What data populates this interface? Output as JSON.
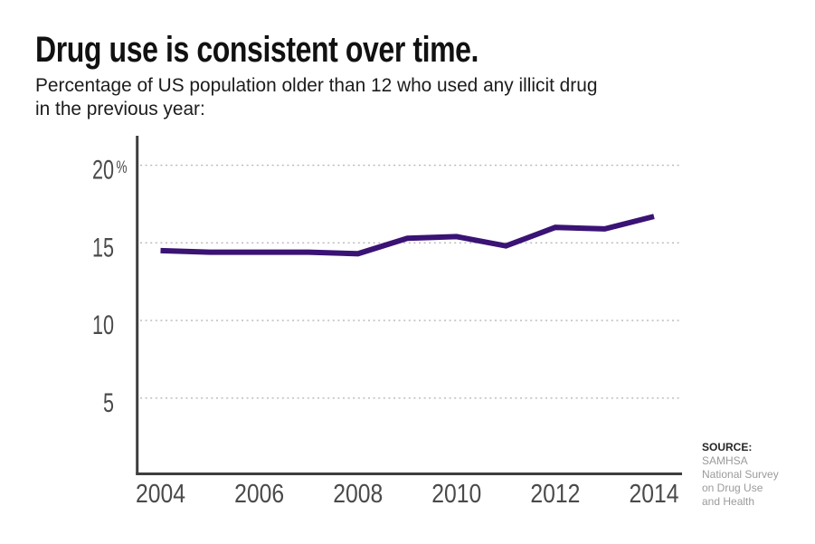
{
  "header": {
    "title": "Drug use is consistent over time.",
    "subtitle_line1": "Percentage of US population older than 12 who used any illicit drug",
    "subtitle_line2": "in the previous year:"
  },
  "chart_data": {
    "type": "line",
    "title": "Drug use is consistent over time.",
    "subtitle": "Percentage of US population older than 12 who used any illicit drug in the previous year:",
    "x": [
      2004,
      2005,
      2006,
      2007,
      2008,
      2009,
      2010,
      2011,
      2012,
      2013,
      2014
    ],
    "series": [
      {
        "name": "Past-year illicit drug use, % of US population 12+",
        "values": [
          14.5,
          14.4,
          14.4,
          14.4,
          14.3,
          15.3,
          15.4,
          14.8,
          16.0,
          15.9,
          16.7
        ]
      }
    ],
    "x_ticks": [
      2004,
      2006,
      2008,
      2010,
      2012,
      2014
    ],
    "x_tick_labels": [
      "2004",
      "2006",
      "2008",
      "2010",
      "2012",
      "2014"
    ],
    "y_ticks": [
      20,
      15,
      10,
      5
    ],
    "y_tick_labels": [
      "20%",
      "15",
      "10",
      "5"
    ],
    "xlim": [
      2004,
      2014
    ],
    "ylim": [
      0,
      22
    ],
    "grid": "horizontal-dotted",
    "legend": "none",
    "line_color": "#3a1375"
  },
  "source": {
    "label": "SOURCE:",
    "lines": [
      "SAMHSA",
      "National Survey",
      "on Drug Use",
      "and Health"
    ]
  },
  "colors": {
    "background": "#ffffff",
    "line": "#3a1375",
    "axis": "#3e3e3e",
    "grid": "#b7b7b7",
    "tick_text": "#4a4a4a",
    "title_text": "#111111",
    "source_muted": "#9b9b9b"
  }
}
